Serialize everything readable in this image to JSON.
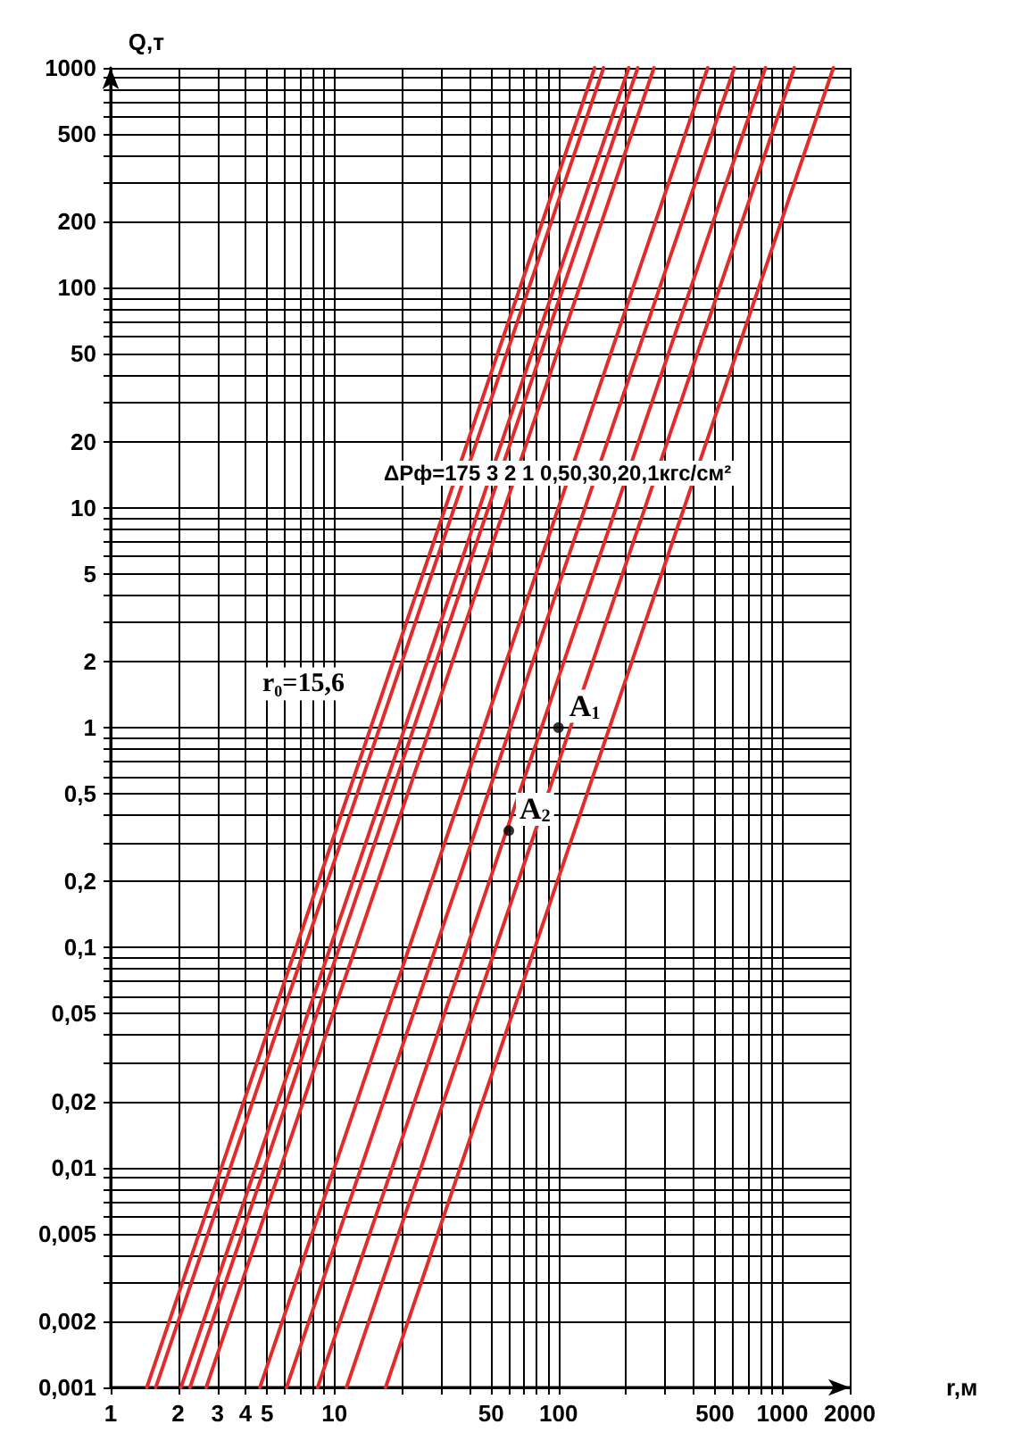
{
  "chart_data": {
    "type": "line",
    "xlabel": "r,м",
    "ylabel": "Q,т",
    "log": "xy",
    "grid": true,
    "marker": "none",
    "line_style": "solid",
    "xlim": [
      1,
      2000
    ],
    "ylim": [
      0.001,
      1000
    ],
    "xticks": [
      1,
      2,
      3,
      4,
      5,
      {
        "value": 6,
        "label": null
      },
      {
        "value": 7,
        "label": null
      },
      {
        "value": 8,
        "label": null
      },
      {
        "value": 9,
        "label": null
      },
      10,
      {
        "value": 20,
        "label": null
      },
      {
        "value": 30,
        "label": null
      },
      {
        "value": 40,
        "label": null
      },
      50,
      {
        "value": 60,
        "label": null
      },
      {
        "value": 70,
        "label": null
      },
      {
        "value": 80,
        "label": null
      },
      {
        "value": 90,
        "label": null
      },
      100,
      {
        "value": 200,
        "label": null
      },
      {
        "value": 300,
        "label": null
      },
      {
        "value": 400,
        "label": null
      },
      500,
      {
        "value": 600,
        "label": null
      },
      {
        "value": 700,
        "label": null
      },
      {
        "value": 800,
        "label": null
      },
      {
        "value": 900,
        "label": null
      },
      1000,
      2000
    ],
    "yticks": [
      {
        "value": 0.001,
        "label": "0,001"
      },
      {
        "value": 0.002,
        "label": "0,002"
      },
      {
        "value": 0.003,
        "label": null
      },
      {
        "value": 0.004,
        "label": null
      },
      {
        "value": 0.005,
        "label": "0,005"
      },
      {
        "value": 0.006,
        "label": null
      },
      {
        "value": 0.007,
        "label": null
      },
      {
        "value": 0.008,
        "label": null
      },
      {
        "value": 0.009,
        "label": null
      },
      {
        "value": 0.01,
        "label": "0,01"
      },
      {
        "value": 0.02,
        "label": "0,02"
      },
      {
        "value": 0.03,
        "label": null
      },
      {
        "value": 0.04,
        "label": null
      },
      {
        "value": 0.05,
        "label": "0,05"
      },
      {
        "value": 0.06,
        "label": null
      },
      {
        "value": 0.07,
        "label": null
      },
      {
        "value": 0.08,
        "label": null
      },
      {
        "value": 0.09,
        "label": null
      },
      {
        "value": 0.1,
        "label": "0,1"
      },
      {
        "value": 0.2,
        "label": "0,2"
      },
      {
        "value": 0.3,
        "label": null
      },
      {
        "value": 0.4,
        "label": null
      },
      {
        "value": 0.5,
        "label": "0,5"
      },
      {
        "value": 0.6,
        "label": null
      },
      {
        "value": 0.7,
        "label": null
      },
      {
        "value": 0.8,
        "label": null
      },
      {
        "value": 0.9,
        "label": null
      },
      1,
      2,
      {
        "value": 3,
        "label": null
      },
      {
        "value": 4,
        "label": null
      },
      5,
      {
        "value": 6,
        "label": null
      },
      {
        "value": 7,
        "label": null
      },
      {
        "value": 8,
        "label": null
      },
      {
        "value": 9,
        "label": null
      },
      10,
      20,
      {
        "value": 30,
        "label": null
      },
      {
        "value": 40,
        "label": null
      },
      50,
      {
        "value": 60,
        "label": null
      },
      {
        "value": 70,
        "label": null
      },
      {
        "value": 80,
        "label": null
      },
      {
        "value": 90,
        "label": null
      },
      100,
      200,
      {
        "value": 300,
        "label": null
      },
      {
        "value": 400,
        "label": null
      },
      500,
      {
        "value": 600,
        "label": null
      },
      {
        "value": 700,
        "label": null
      },
      {
        "value": 800,
        "label": null
      },
      {
        "value": 900,
        "label": null
      },
      1000
    ],
    "series": [
      {
        "color": "#e32b2b",
        "x": [
          1.45,
          145
        ],
        "values": [
          0.001,
          1000
        ]
      },
      {
        "color": "#e32b2b",
        "x": [
          1.59,
          159
        ],
        "values": [
          0.001,
          1000
        ]
      },
      {
        "color": "#e32b2b",
        "x": [
          2.06,
          206
        ],
        "values": [
          0.001,
          1000
        ]
      },
      {
        "color": "#e32b2b",
        "x": [
          2.26,
          226
        ],
        "values": [
          0.001,
          1000
        ]
      },
      {
        "color": "#e32b2b",
        "x": [
          2.67,
          267
        ],
        "values": [
          0.001,
          1000
        ]
      },
      {
        "color": "#e32b2b",
        "x": [
          4.64,
          464
        ],
        "values": [
          0.001,
          1000
        ]
      },
      {
        "color": "#e32b2b",
        "x": [
          6.1,
          610
        ],
        "values": [
          0.001,
          1000
        ]
      },
      {
        "color": "#e32b2b",
        "x": [
          8.4,
          840
        ],
        "values": [
          0.001,
          1000
        ]
      },
      {
        "color": "#e32b2b",
        "x": [
          11.3,
          1130
        ],
        "values": [
          0.001,
          1000
        ]
      },
      {
        "color": "#e32b2b",
        "x": [
          16.9,
          1690
        ],
        "values": [
          0.001,
          1000
        ]
      },
      {
        "type": "scatter",
        "marker": "circle",
        "color": "#000000",
        "x": [
          100,
          60
        ],
        "values": [
          1,
          0.34
        ]
      }
    ],
    "annotations": [
      "ΔРф=175 3 2 1 0,50,30,20,1кгс/см²",
      "r$_{0}$=15,6",
      {
        "text": "A$_{1}$",
        "x": 100,
        "y": 1
      },
      {
        "text": "A$_{2}$",
        "x": 60,
        "y": 0.34
      }
    ]
  }
}
